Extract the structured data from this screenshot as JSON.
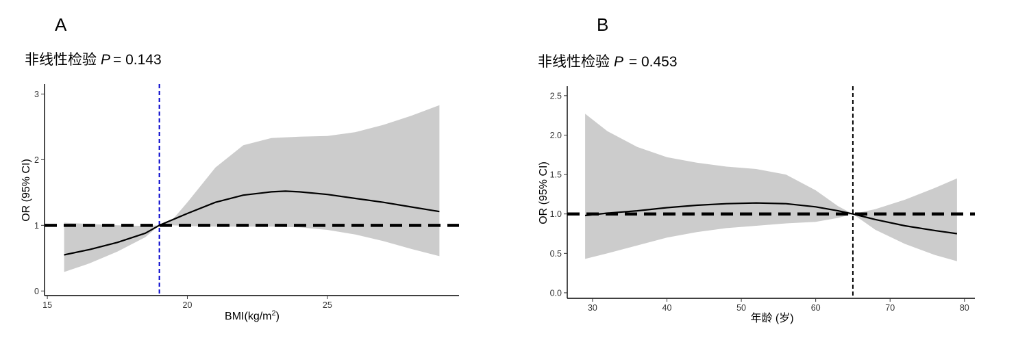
{
  "chart_data": [
    {
      "panel": "A",
      "type": "line",
      "title_prefix": "非线性检验",
      "title_p": "P",
      "title_value": "= 0.143",
      "xlabel_main": "BMI(kg/m",
      "xlabel_sup": "2",
      "xlabel_end": ")",
      "ylabel": "OR (95% CI)",
      "xlim": [
        14.9,
        29.7
      ],
      "ylim": [
        -0.07,
        3.15
      ],
      "xticks": [
        15,
        20,
        25
      ],
      "yticks": [
        0,
        1,
        2,
        3
      ],
      "ref_line_y": 1,
      "vline_x": 19,
      "vline_color": "#0000cc",
      "curve": {
        "x": [
          15.6,
          16.5,
          17.5,
          18.5,
          19.0,
          20.0,
          21.0,
          22.0,
          23.0,
          23.5,
          24.0,
          25.0,
          26.0,
          27.0,
          28.0,
          29.0
        ],
        "y": [
          0.55,
          0.63,
          0.74,
          0.88,
          1.0,
          1.18,
          1.35,
          1.46,
          1.51,
          1.52,
          1.51,
          1.47,
          1.41,
          1.35,
          1.28,
          1.21
        ]
      },
      "ci_upper": {
        "x": [
          15.6,
          16.5,
          17.5,
          18.5,
          19.0,
          19.5,
          20.0,
          21.0,
          22.0,
          23.0,
          24.0,
          25.0,
          26.0,
          27.0,
          28.0,
          29.0
        ],
        "y": [
          1.04,
          1.02,
          1.0,
          0.99,
          1.0,
          1.1,
          1.35,
          1.88,
          2.22,
          2.33,
          2.35,
          2.36,
          2.42,
          2.53,
          2.67,
          2.83
        ]
      },
      "ci_lower": {
        "x": [
          15.6,
          16.5,
          17.5,
          18.5,
          19.0,
          19.5,
          20.0,
          21.0,
          22.0,
          23.0,
          24.0,
          25.0,
          26.0,
          27.0,
          28.0,
          29.0
        ],
        "y": [
          0.29,
          0.42,
          0.6,
          0.82,
          1.0,
          1.0,
          0.99,
          0.98,
          0.98,
          0.98,
          0.97,
          0.93,
          0.86,
          0.76,
          0.64,
          0.53
        ]
      },
      "band_color": "#cccccc"
    },
    {
      "panel": "B",
      "type": "line",
      "title_prefix": "非线性检验",
      "title_p": "P",
      "title_value": " = 0.453",
      "xlabel_main": "年龄 (岁)",
      "xlabel_sup": "",
      "xlabel_end": "",
      "ylabel": "OR (95% CI)",
      "xlim": [
        26.6,
        81.4
      ],
      "ylim": [
        -0.07,
        2.62
      ],
      "xticks": [
        30,
        40,
        50,
        60,
        70,
        80
      ],
      "yticks": [
        0.0,
        0.5,
        1.0,
        1.5,
        2.0,
        2.5
      ],
      "ytick_labels": [
        "0.0",
        "0.5",
        "1.0",
        "1.5",
        "2.0",
        "2.5"
      ],
      "ref_line_y": 1,
      "vline_x": 65,
      "vline_color": "#000000",
      "curve": {
        "x": [
          29,
          32,
          36,
          40,
          44,
          48,
          52,
          56,
          60,
          63,
          65,
          68,
          72,
          76,
          79
        ],
        "y": [
          0.98,
          1.01,
          1.04,
          1.08,
          1.11,
          1.13,
          1.14,
          1.13,
          1.09,
          1.04,
          1.0,
          0.93,
          0.85,
          0.79,
          0.75
        ]
      },
      "ci_upper": {
        "x": [
          29,
          32,
          36,
          40,
          44,
          48,
          52,
          56,
          60,
          63,
          65,
          68,
          72,
          76,
          79
        ],
        "y": [
          2.27,
          2.05,
          1.85,
          1.72,
          1.65,
          1.6,
          1.57,
          1.5,
          1.3,
          1.1,
          1.0,
          1.06,
          1.18,
          1.33,
          1.45
        ]
      },
      "ci_lower": {
        "x": [
          29,
          32,
          36,
          40,
          44,
          48,
          52,
          56,
          60,
          63,
          65,
          68,
          72,
          76,
          79
        ],
        "y": [
          0.43,
          0.5,
          0.6,
          0.7,
          0.77,
          0.82,
          0.85,
          0.88,
          0.9,
          0.95,
          1.0,
          0.8,
          0.62,
          0.48,
          0.4
        ]
      },
      "band_color": "#cccccc"
    }
  ]
}
